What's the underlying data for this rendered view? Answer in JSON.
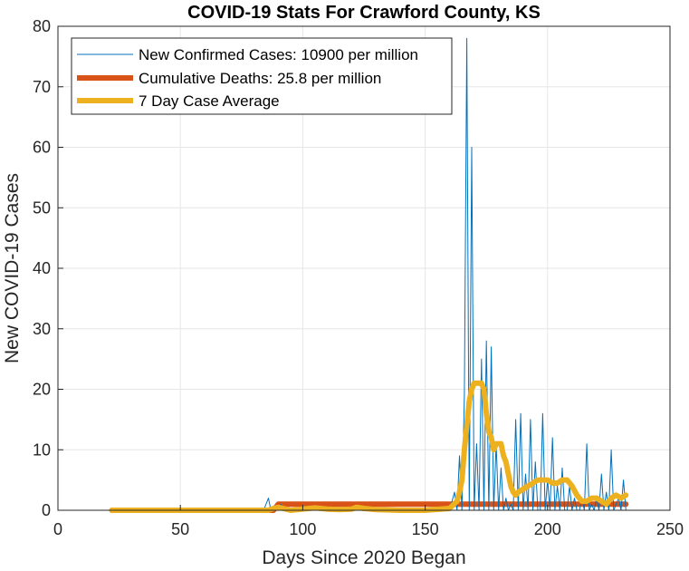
{
  "chart_data": {
    "type": "line",
    "title": "COVID-19 Stats For Crawford County, KS",
    "xlabel": "Days Since 2020 Began",
    "ylabel": "New COVID-19 Cases",
    "xlim": [
      0,
      250
    ],
    "ylim": [
      0,
      80
    ],
    "xticks": [
      0,
      50,
      100,
      150,
      200,
      250
    ],
    "yticks": [
      0,
      10,
      20,
      30,
      40,
      50,
      60,
      70,
      80
    ],
    "grid": true,
    "legend_position": "top-left",
    "series": [
      {
        "name": "New Confirmed Cases: 10900 per million",
        "color": "#0072BD",
        "style": "thin",
        "x": [
          22,
          84,
          86,
          87,
          88,
          90,
          91,
          92,
          160,
          162,
          163,
          164,
          165,
          166,
          167,
          168,
          169,
          170,
          171,
          172,
          173,
          174,
          175,
          176,
          177,
          178,
          179,
          180,
          181,
          182,
          183,
          184,
          185,
          186,
          187,
          188,
          189,
          190,
          191,
          192,
          193,
          194,
          195,
          196,
          197,
          198,
          199,
          200,
          201,
          202,
          203,
          204,
          205,
          206,
          207,
          208,
          209,
          210,
          211,
          212,
          213,
          214,
          215,
          216,
          217,
          218,
          219,
          220,
          221,
          222,
          223,
          224,
          225,
          226,
          227,
          228,
          229,
          230,
          231,
          232
        ],
        "y": [
          0,
          0,
          2,
          0,
          0,
          0,
          1,
          0,
          0,
          3,
          0,
          9,
          0,
          19,
          78,
          0,
          60,
          0,
          11,
          0,
          25,
          0,
          28,
          0,
          27,
          0,
          11,
          0,
          7,
          0,
          2,
          0,
          1,
          0,
          15,
          0,
          16,
          0,
          6,
          0,
          15,
          0,
          8,
          0,
          0,
          16,
          0,
          5,
          0,
          12,
          0,
          4,
          0,
          7,
          0,
          0,
          4,
          0,
          2,
          0,
          0,
          2,
          0,
          11,
          0,
          1,
          0,
          2,
          0,
          6,
          0,
          3,
          0,
          10,
          0,
          1,
          2,
          0,
          5,
          0
        ]
      },
      {
        "name": "Cumulative Deaths: 25.8 per million",
        "color": "#D95319",
        "style": "thick",
        "x": [
          22,
          88,
          89,
          90,
          232
        ],
        "y": [
          0,
          0,
          0.5,
          1,
          1
        ]
      },
      {
        "name": "7 Day Case Average",
        "color": "#EDB120",
        "style": "thick",
        "x": [
          22,
          86,
          88,
          90,
          92,
          95,
          100,
          105,
          110,
          115,
          120,
          122,
          125,
          130,
          140,
          150,
          160,
          163,
          164,
          165,
          166,
          167,
          168,
          169,
          170,
          171,
          172,
          173,
          174,
          175,
          176,
          177,
          178,
          179,
          180,
          181,
          182,
          183,
          184,
          185,
          186,
          187,
          188,
          190,
          192,
          194,
          196,
          198,
          200,
          202,
          204,
          206,
          208,
          210,
          212,
          214,
          216,
          218,
          220,
          222,
          224,
          226,
          228,
          230,
          232
        ],
        "y": [
          0,
          0,
          0.3,
          0.5,
          0.3,
          0,
          0.2,
          0.4,
          0.2,
          0.1,
          0.2,
          0.5,
          0.3,
          0.1,
          0,
          0,
          0.3,
          1.5,
          3,
          5,
          10,
          14,
          18,
          20,
          21,
          21,
          21,
          21,
          20,
          16,
          13,
          12,
          10,
          11,
          11,
          11,
          9,
          8,
          6,
          4,
          3,
          2.5,
          3,
          3.5,
          4,
          4.5,
          5,
          5,
          5,
          4.5,
          4.5,
          5,
          5,
          4,
          2.5,
          1.5,
          1.5,
          2,
          2,
          1.5,
          1,
          2,
          2.5,
          2,
          2.5
        ]
      }
    ]
  }
}
